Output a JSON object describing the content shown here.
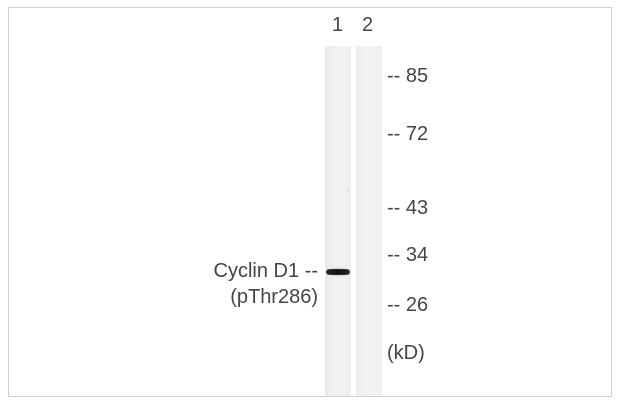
{
  "lanes": [
    {
      "label": "1"
    },
    {
      "label": "2"
    }
  ],
  "markers": [
    {
      "label": "-- 85"
    },
    {
      "label": "-- 72"
    },
    {
      "label": "-- 43"
    },
    {
      "label": "-- 34"
    },
    {
      "label": "-- 26"
    }
  ],
  "unit": "(kD)",
  "protein": {
    "line1": "Cyclin D1 --",
    "line2": "(pThr286)"
  }
}
